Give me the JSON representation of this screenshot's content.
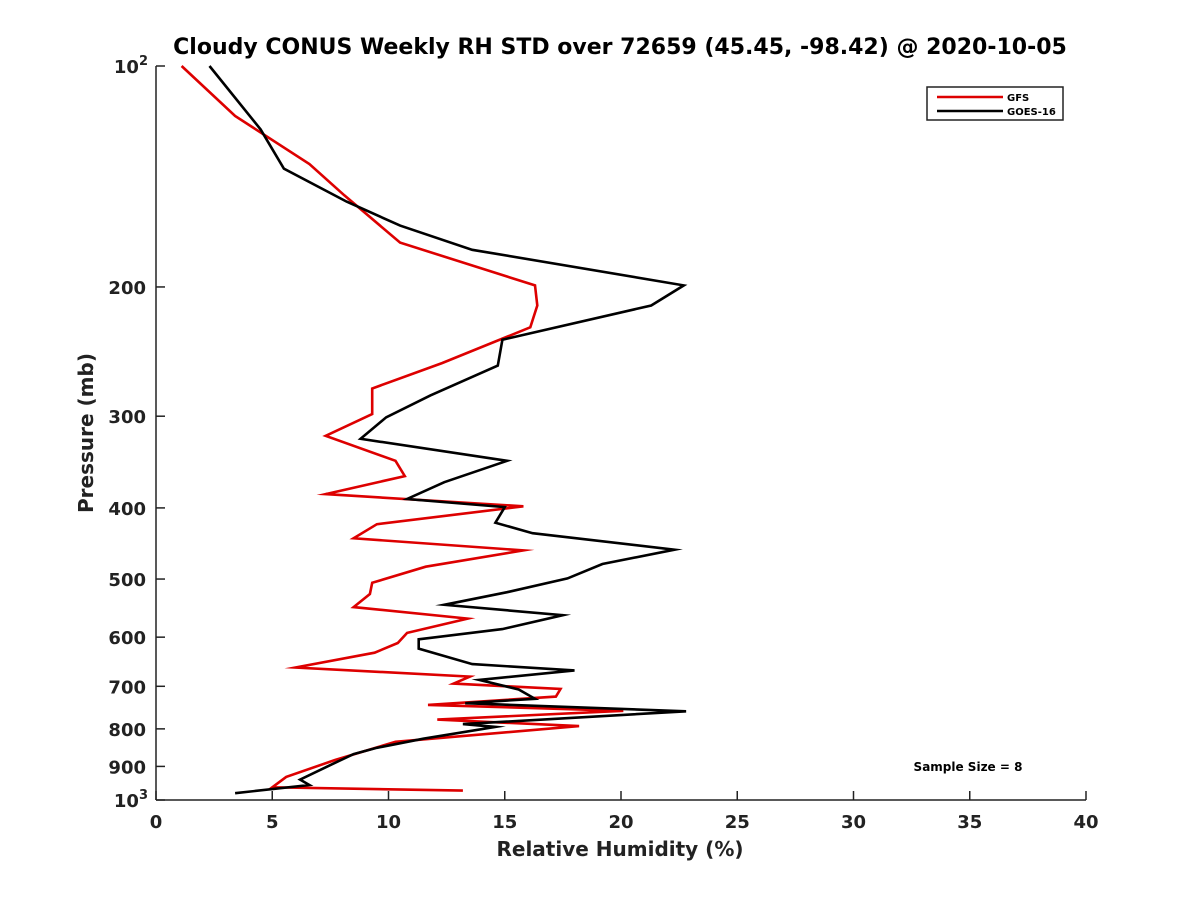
{
  "chart_data": {
    "type": "line",
    "title": "Cloudy CONUS Weekly RH STD over 72659 (45.45, -98.42) @ 2020-10-05",
    "xlabel": "Relative Humidity (%)",
    "ylabel": "Pressure (mb)",
    "xlim": [
      0,
      40
    ],
    "ylim": [
      100,
      1000
    ],
    "y_scale": "log",
    "y_direction": "reversed",
    "grid": false,
    "legend_position": "top-right",
    "x_ticks": [
      0,
      5,
      10,
      15,
      20,
      25,
      30,
      35,
      40
    ],
    "x_tick_labels": [
      "0",
      "5",
      "10",
      "15",
      "20",
      "25",
      "30",
      "35",
      "40"
    ],
    "y_ticks": [
      100,
      200,
      300,
      400,
      500,
      600,
      700,
      800,
      900,
      1000
    ],
    "y_tick_labels": [
      {
        "base": "10",
        "exp": "2"
      },
      {
        "base": "200",
        "exp": ""
      },
      {
        "base": "300",
        "exp": ""
      },
      {
        "base": "400",
        "exp": ""
      },
      {
        "base": "500",
        "exp": ""
      },
      {
        "base": "600",
        "exp": ""
      },
      {
        "base": "700",
        "exp": ""
      },
      {
        "base": "800",
        "exp": ""
      },
      {
        "base": "900",
        "exp": ""
      },
      {
        "base": "10",
        "exp": "3"
      }
    ],
    "annotation": "Sample Size = 8",
    "series": [
      {
        "name": "GFS",
        "color": "#dd0000",
        "points": [
          [
            1.1,
            100
          ],
          [
            3.4,
            117
          ],
          [
            6.6,
            136
          ],
          [
            8.1,
            150
          ],
          [
            10.5,
            174
          ],
          [
            16.3,
            199
          ],
          [
            16.4,
            212
          ],
          [
            16.1,
            227
          ],
          [
            12.3,
            254
          ],
          [
            9.3,
            275
          ],
          [
            9.3,
            298
          ],
          [
            7.3,
            319
          ],
          [
            10.3,
            345
          ],
          [
            10.7,
            362
          ],
          [
            7.3,
            383
          ],
          [
            15.8,
            398
          ],
          [
            9.5,
            421
          ],
          [
            8.5,
            440
          ],
          [
            15.8,
            457
          ],
          [
            11.6,
            481
          ],
          [
            9.3,
            506
          ],
          [
            9.2,
            524
          ],
          [
            8.5,
            546
          ],
          [
            13.4,
            566
          ],
          [
            10.8,
            592
          ],
          [
            10.4,
            611
          ],
          [
            9.4,
            630
          ],
          [
            6.0,
            660
          ],
          [
            13.5,
            679
          ],
          [
            12.8,
            694
          ],
          [
            17.4,
            706
          ],
          [
            17.2,
            723
          ],
          [
            11.7,
            742
          ],
          [
            20.1,
            756
          ],
          [
            12.1,
            777
          ],
          [
            18.2,
            793
          ],
          [
            10.3,
            833
          ],
          [
            7.7,
            882
          ],
          [
            5.6,
            930
          ],
          [
            5.0,
            961
          ],
          [
            13.2,
            971
          ]
        ]
      },
      {
        "name": "GOES-16",
        "color": "#000000",
        "points": [
          [
            2.3,
            100
          ],
          [
            4.5,
            122
          ],
          [
            5.5,
            138
          ],
          [
            8.2,
            153
          ],
          [
            10.5,
            165
          ],
          [
            13.6,
            178
          ],
          [
            22.7,
            199
          ],
          [
            21.3,
            212
          ],
          [
            14.9,
            236
          ],
          [
            14.7,
            256
          ],
          [
            11.8,
            281
          ],
          [
            9.9,
            301
          ],
          [
            8.8,
            322
          ],
          [
            15.1,
            345
          ],
          [
            12.4,
            369
          ],
          [
            10.8,
            389
          ],
          [
            15.0,
            399
          ],
          [
            14.6,
            419
          ],
          [
            16.2,
            433
          ],
          [
            22.3,
            456
          ],
          [
            19.2,
            477
          ],
          [
            17.7,
            499
          ],
          [
            15.1,
            521
          ],
          [
            12.4,
            542
          ],
          [
            17.5,
            560
          ],
          [
            14.9,
            585
          ],
          [
            11.3,
            604
          ],
          [
            11.3,
            622
          ],
          [
            13.6,
            653
          ],
          [
            18.0,
            666
          ],
          [
            13.9,
            686
          ],
          [
            15.6,
            707
          ],
          [
            16.3,
            728
          ],
          [
            13.3,
            738
          ],
          [
            22.8,
            757
          ],
          [
            13.2,
            788
          ],
          [
            14.6,
            795
          ],
          [
            11.5,
            825
          ],
          [
            9.5,
            849
          ],
          [
            8.5,
            866
          ],
          [
            7.6,
            893
          ],
          [
            6.2,
            938
          ],
          [
            6.6,
            954
          ],
          [
            3.4,
            979
          ]
        ]
      }
    ]
  }
}
